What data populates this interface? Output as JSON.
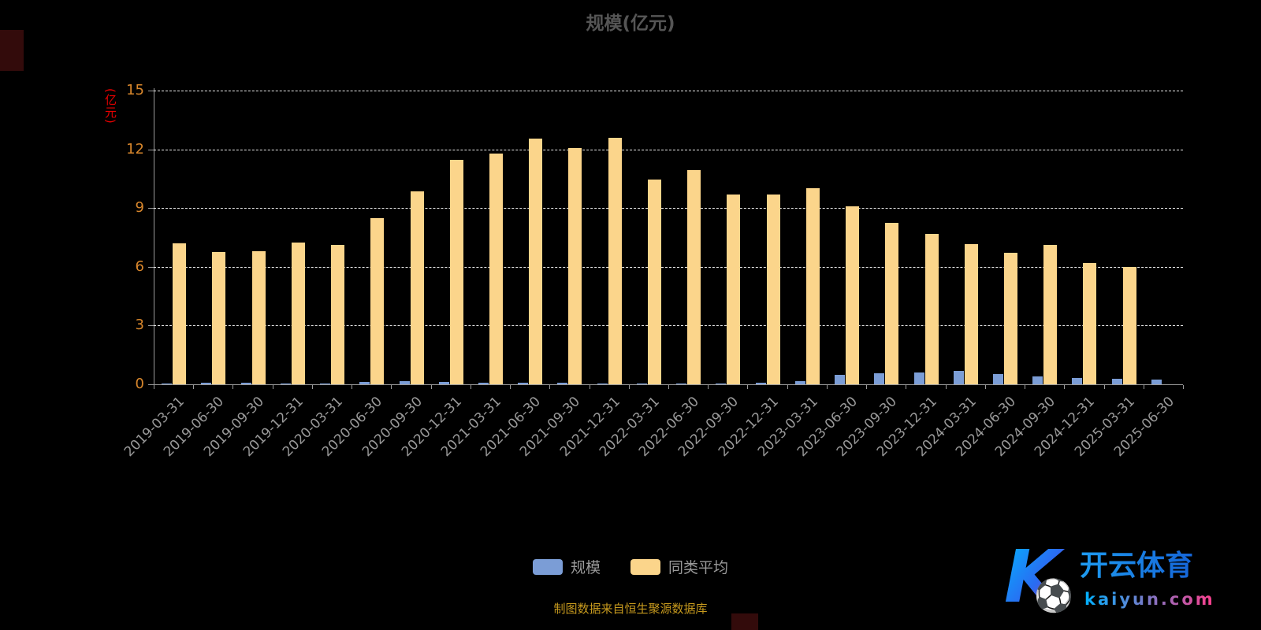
{
  "title": "规模(亿元)",
  "y_axis_name": "(亿元)",
  "legend": [
    {
      "label": "规模",
      "color": "#7b9dd6"
    },
    {
      "label": "同类平均",
      "color": "#fbd58b"
    }
  ],
  "footnote": "制图数据来自恒生聚源数据库",
  "watermark": {
    "letter": "K",
    "brand": "开云体育",
    "domain": "kaiyun.com"
  },
  "colors": {
    "background": "#000000",
    "title": "#555555",
    "y_tick_label": "#d9872c",
    "x_tick_label": "#999999",
    "grid": "#e8e8e8",
    "axis_line": "#9a9a9a",
    "y_axis_name": "#e60000",
    "footnote": "#c79a1e",
    "bar_blue": "#7b9dd6",
    "bar_orange": "#fbd58b"
  },
  "chart_data": {
    "type": "bar",
    "title": "规模(亿元)",
    "ylabel": "(亿元)",
    "ylim": [
      0,
      15
    ],
    "yticks": [
      0,
      3,
      6,
      9,
      12,
      15
    ],
    "grid": "horizontal-dashed",
    "legend_position": "bottom-center",
    "categories": [
      "2019-03-31",
      "2019-06-30",
      "2019-09-30",
      "2019-12-31",
      "2020-03-31",
      "2020-06-30",
      "2020-09-30",
      "2020-12-31",
      "2021-03-31",
      "2021-06-30",
      "2021-09-30",
      "2021-12-31",
      "2022-03-31",
      "2022-06-30",
      "2022-09-30",
      "2022-12-31",
      "2023-03-31",
      "2023-06-30",
      "2023-09-30",
      "2023-12-31",
      "2024-03-31",
      "2024-06-30",
      "2024-09-30",
      "2024-12-31",
      "2025-03-31",
      "2025-06-30"
    ],
    "series": [
      {
        "name": "规模",
        "color": "#7b9dd6",
        "values": [
          0.06,
          0.08,
          0.08,
          0.06,
          0.06,
          0.12,
          0.15,
          0.12,
          0.08,
          0.08,
          0.07,
          0.06,
          0.05,
          0.06,
          0.06,
          0.08,
          0.15,
          0.5,
          0.55,
          0.6,
          0.68,
          0.52,
          0.4,
          0.32,
          0.28,
          0.24
        ]
      },
      {
        "name": "同类平均",
        "color": "#fbd58b",
        "values": [
          7.2,
          6.75,
          6.8,
          7.25,
          7.1,
          8.5,
          9.85,
          11.45,
          11.8,
          12.55,
          12.05,
          12.6,
          10.45,
          10.95,
          9.7,
          9.7,
          10.0,
          9.1,
          8.25,
          7.7,
          7.15,
          6.7,
          7.1,
          6.2,
          6.0,
          0
        ]
      }
    ]
  }
}
